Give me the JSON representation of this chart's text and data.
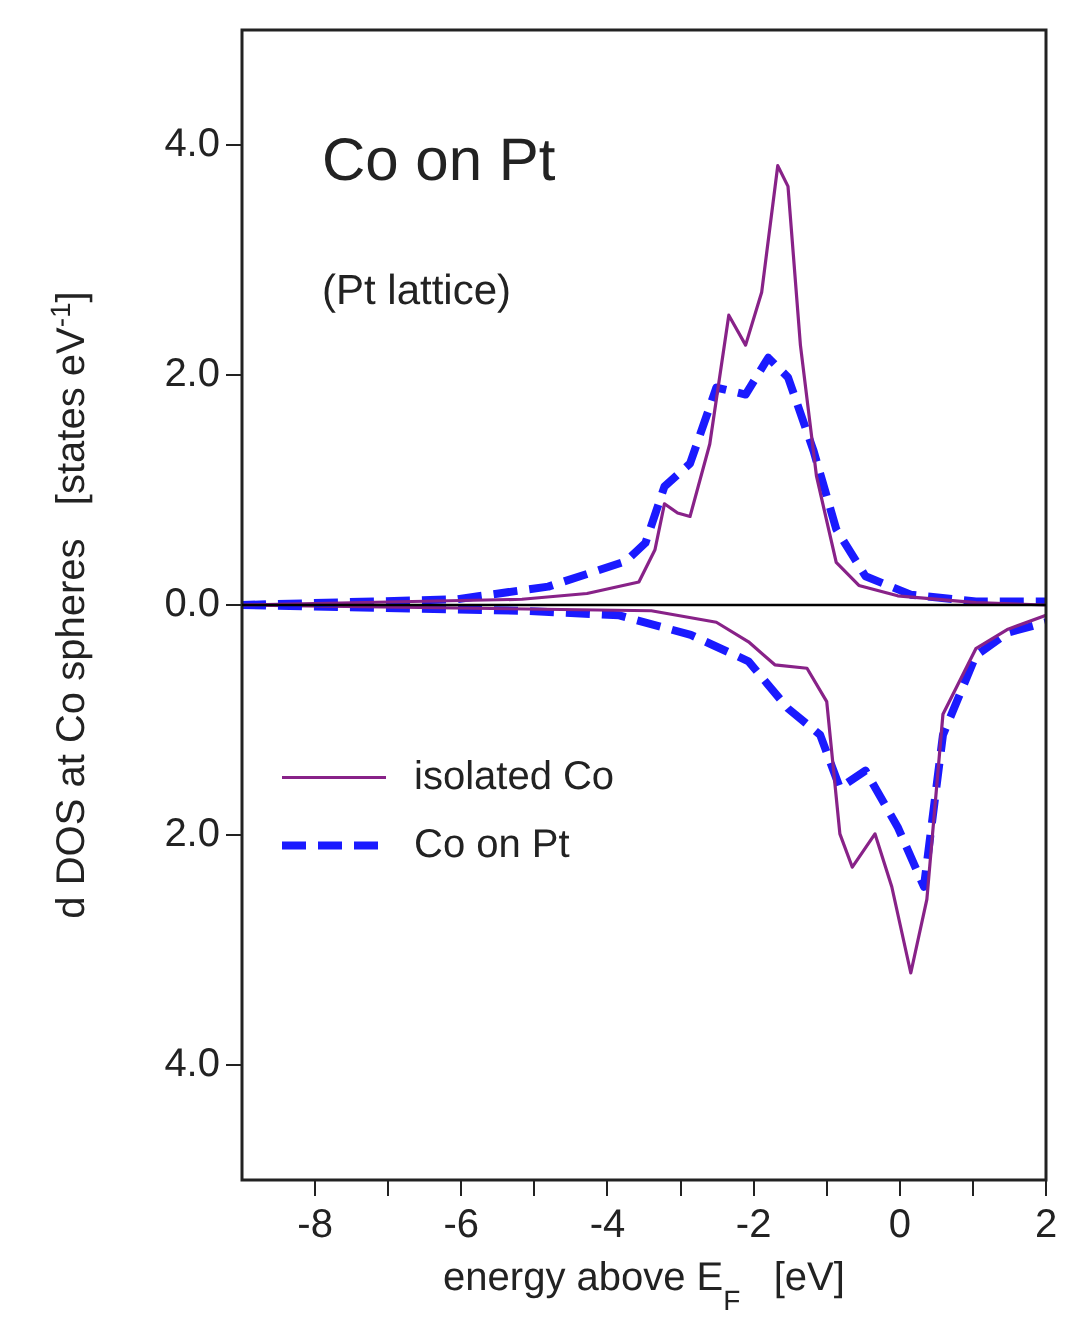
{
  "chart_data": {
    "type": "line",
    "title": "Co on Pt",
    "subtitle": "(Pt lattice)",
    "xlabel": "energy above E$_{F}$   [eV]",
    "ylabel": "d DOS at Co spheres   [states eV$^{-1}$]",
    "xlim": [
      -9,
      2
    ],
    "xticks": [
      -8,
      {
        "value": -7,
        "label": null
      },
      -6,
      {
        "value": -5,
        "label": null
      },
      -4,
      {
        "value": -3,
        "label": null
      },
      -2,
      {
        "value": -1,
        "label": null
      },
      0,
      {
        "value": 1,
        "label": null
      },
      2
    ],
    "ylim": [
      -5,
      5
    ],
    "yticks": [
      {
        "value": -4,
        "label": "4.0"
      },
      {
        "value": -2,
        "label": "2.0"
      },
      {
        "value": 0,
        "label": "0.0"
      },
      {
        "value": 2,
        "label": "2.0"
      },
      {
        "value": 4,
        "label": "4.0"
      }
    ],
    "grid": false,
    "legend": "left",
    "marker": "none",
    "ref_lines": [
      {
        "axis": "y",
        "value": 0,
        "color": "#000000"
      }
    ],
    "series": [
      {
        "name": "isolated Co",
        "color": "#882288",
        "line_style": "solid",
        "x": [
          -9,
          -5.17,
          -4.28,
          -3.57,
          -3.35,
          -3.22,
          -3.04,
          -2.87,
          -2.6,
          -2.34,
          -2.11,
          -1.89,
          -1.67,
          -1.53,
          -1.36,
          -1.14,
          -0.87,
          -0.56,
          -0.03,
          1.04,
          2
        ],
        "values": [
          0,
          0.05,
          0.1,
          0.2,
          0.48,
          0.88,
          0.8,
          0.77,
          1.4,
          2.52,
          2.26,
          2.72,
          3.82,
          3.64,
          2.26,
          1.12,
          0.37,
          0.17,
          0.08,
          0.02,
          0
        ]
      },
      {
        "name": "Co on Pt",
        "color": "#1a1aff",
        "line_style": "dashed",
        "x": [
          -9,
          -6.06,
          -4.81,
          -3.75,
          -3.48,
          -3.22,
          -2.87,
          -2.51,
          -2.11,
          -1.8,
          -1.53,
          -1.18,
          -0.87,
          -0.47,
          0.15,
          1.04,
          2
        ],
        "values": [
          0,
          0.05,
          0.16,
          0.38,
          0.54,
          1.03,
          1.23,
          1.89,
          1.83,
          2.15,
          1.98,
          1.34,
          0.66,
          0.25,
          0.09,
          0.03,
          0.03
        ]
      },
      {
        "color": "#882288",
        "line_style": "solid",
        "x": [
          -9,
          -3.4,
          -2.51,
          -2.07,
          -1.71,
          -1.27,
          -1.0,
          -0.82,
          -0.65,
          -0.34,
          -0.11,
          0.15,
          0.37,
          0.59,
          1.04,
          1.48,
          2
        ],
        "values": [
          0,
          -0.05,
          -0.15,
          -0.32,
          -0.52,
          -0.55,
          -0.84,
          -1.99,
          -2.28,
          -1.99,
          -2.45,
          -3.2,
          -2.56,
          -0.95,
          -0.38,
          -0.21,
          -0.09
        ]
      },
      {
        "color": "#1a1aff",
        "line_style": "dashed",
        "x": [
          -9,
          -5.17,
          -3.84,
          -2.86,
          -2.07,
          -1.53,
          -1.09,
          -0.82,
          -0.47,
          -0.03,
          0.33,
          0.59,
          1.04,
          1.48,
          2
        ],
        "values": [
          0,
          -0.05,
          -0.09,
          -0.26,
          -0.49,
          -0.9,
          -1.13,
          -1.59,
          -1.44,
          -1.93,
          -2.45,
          -1.13,
          -0.44,
          -0.24,
          -0.15
        ]
      }
    ]
  }
}
